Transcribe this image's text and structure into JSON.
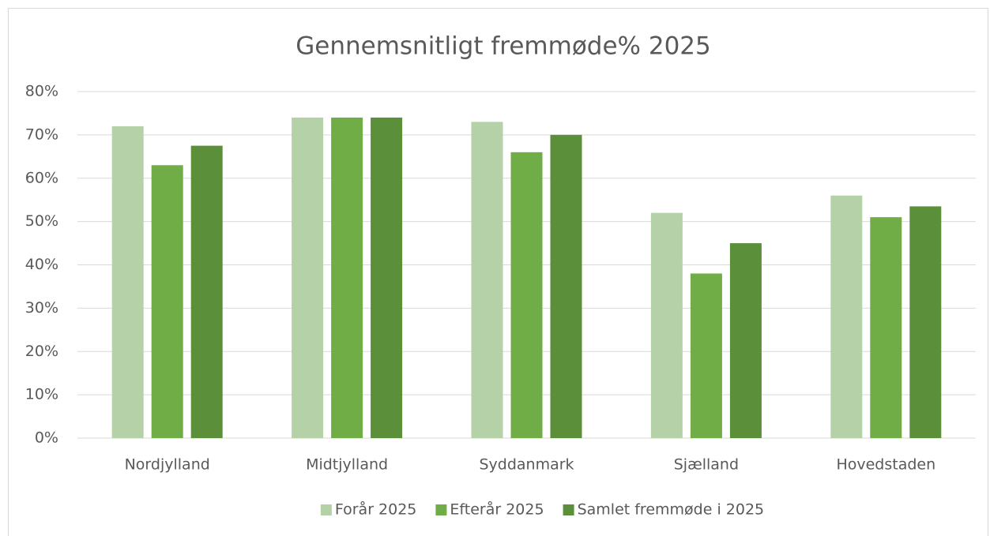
{
  "chart_data": {
    "type": "bar",
    "title": "Gennemsnitligt fremmøde% 2025",
    "categories": [
      "Nordjylland",
      "Midtjylland",
      "Syddanmark",
      "Sjælland",
      "Hovedstaden"
    ],
    "series": [
      {
        "name": "Forår 2025",
        "color": "#b5d1a7",
        "values": [
          72,
          74,
          73,
          52,
          56
        ]
      },
      {
        "name": "Efterår 2025",
        "color": "#70ad47",
        "values": [
          63,
          74,
          66,
          38,
          51
        ]
      },
      {
        "name": "Samlet fremmøde i 2025",
        "color": "#5b8f3a",
        "values": [
          67.5,
          74,
          70,
          45,
          53.5
        ]
      }
    ],
    "ylim": [
      0,
      80
    ],
    "yticks": [
      {
        "value": 0,
        "label": "0%"
      },
      {
        "value": 10,
        "label": "10%"
      },
      {
        "value": 20,
        "label": "20%"
      },
      {
        "value": 30,
        "label": "30%"
      },
      {
        "value": 40,
        "label": "40%"
      },
      {
        "value": 50,
        "label": "50%"
      },
      {
        "value": 60,
        "label": "60%"
      },
      {
        "value": 70,
        "label": "70%"
      },
      {
        "value": 80,
        "label": "80%"
      }
    ],
    "grid": true,
    "legend": "bottom"
  }
}
